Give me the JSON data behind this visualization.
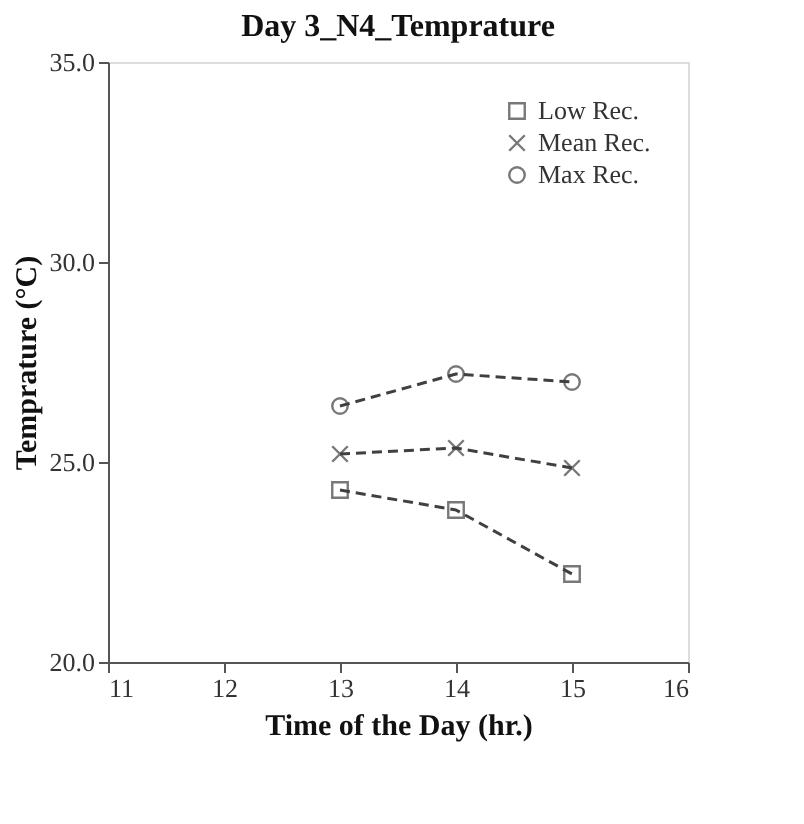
{
  "chart_data": {
    "type": "line",
    "title": "Day 3_N4_Temprature",
    "xlabel": "Time of the Day (hr.)",
    "ylabel": "Temprature (°C)",
    "x": [
      13,
      14,
      15
    ],
    "series": [
      {
        "name": "Low Rec.",
        "color": "#404040",
        "marker": "square",
        "values": [
          24.3,
          23.8,
          22.2
        ]
      },
      {
        "name": "Mean Rec.",
        "color": "#404040",
        "marker": "cross",
        "values": [
          25.2,
          25.35,
          24.85
        ]
      },
      {
        "name": "Max Rec.",
        "color": "#404040",
        "marker": "circle",
        "values": [
          26.4,
          27.2,
          27.0
        ]
      }
    ],
    "xlim": [
      11,
      16
    ],
    "xticks": [
      11,
      12,
      13,
      14,
      15,
      16
    ],
    "ylim": [
      20,
      35
    ],
    "yticks": [
      {
        "value": 20,
        "label": "20.0"
      },
      {
        "value": 25,
        "label": "25.0"
      },
      {
        "value": 30,
        "label": "30.0"
      },
      {
        "value": 35,
        "label": "35.0"
      }
    ],
    "line_style": "dashed",
    "grid": false,
    "legend": "top right"
  }
}
